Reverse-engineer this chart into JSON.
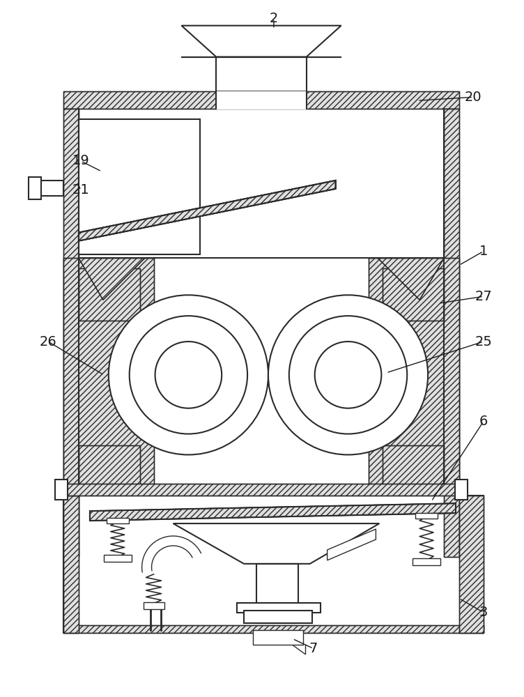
{
  "bg_color": "#ffffff",
  "line_color": "#2a2a2a",
  "figsize": [
    7.52,
    10.0
  ],
  "dpi": 100
}
